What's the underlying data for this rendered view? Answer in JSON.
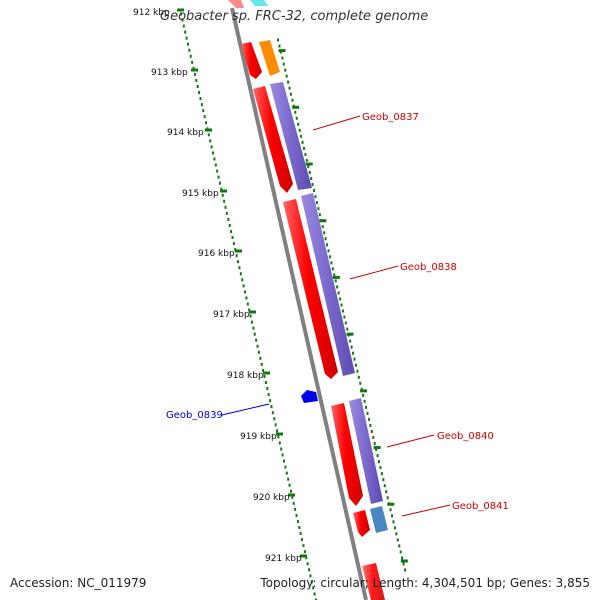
{
  "title": "Geobacter sp. FRC-32, complete genome",
  "footer": {
    "accession_label": "Accession:",
    "accession_value": "NC_011979",
    "topology_text": "Topology: circular; Length: 4,304,501 bp; Genes: 3,855"
  },
  "ruler": [
    {
      "label": "912 kbp"
    },
    {
      "label": "913 kbp"
    },
    {
      "label": "914 kbp"
    },
    {
      "label": "915 kbp"
    },
    {
      "label": "916 kbp"
    },
    {
      "label": "917 kbp"
    },
    {
      "label": "918 kbp"
    },
    {
      "label": "919 kbp"
    },
    {
      "label": "920 kbp"
    },
    {
      "label": "921 kbp"
    }
  ],
  "gene_labels": [
    {
      "name": "Geob_0837",
      "strand": "forward"
    },
    {
      "name": "Geob_0838",
      "strand": "forward"
    },
    {
      "name": "Geob_0839",
      "strand": "reverse"
    },
    {
      "name": "Geob_0840",
      "strand": "forward"
    },
    {
      "name": "Geob_0841",
      "strand": "forward"
    }
  ],
  "colors": {
    "gene_forward": "#ee0000",
    "gene_reverse": "#0000ee",
    "cds_purple": "#7b68cc",
    "cds_orange": "#ff8c00",
    "cds_cyan": "#33ddee",
    "cds_steelblue": "#4a86c0",
    "ruler_green": "#117711",
    "backbone": "#888888"
  }
}
